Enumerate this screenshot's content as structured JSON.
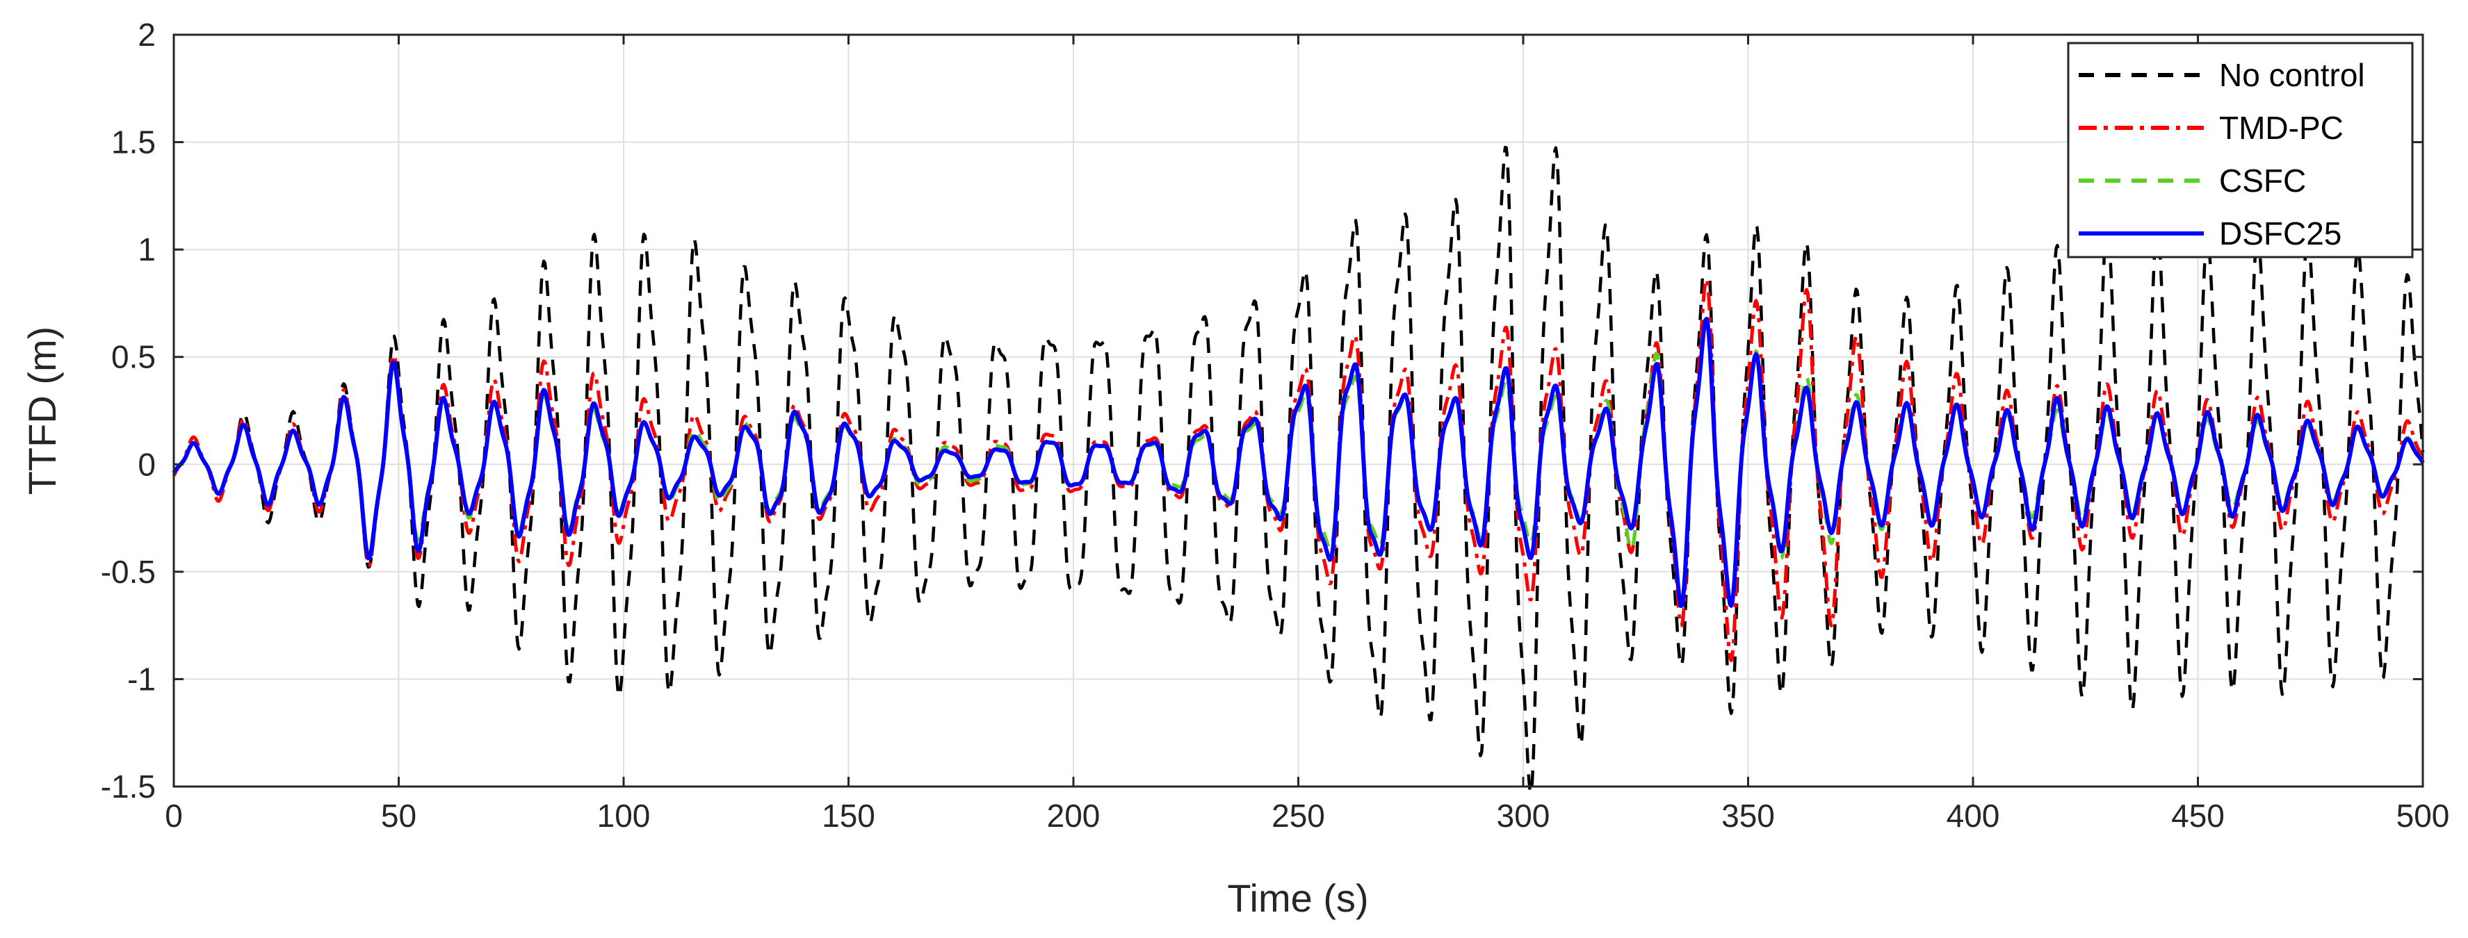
{
  "chart_data": {
    "type": "line",
    "title": "",
    "xlabel": "Time (s)",
    "ylabel": "TTFD (m)",
    "xlim": [
      0,
      500
    ],
    "ylim": [
      -1.5,
      2
    ],
    "xticks": [
      0,
      50,
      100,
      150,
      200,
      250,
      300,
      350,
      400,
      450,
      500
    ],
    "yticks": [
      -1.5,
      -1,
      -0.5,
      0,
      0.5,
      1,
      1.5,
      2
    ],
    "xtick_labels": [
      "0",
      "50",
      "100",
      "150",
      "200",
      "250",
      "300",
      "350",
      "400",
      "450",
      "500"
    ],
    "ytick_labels": [
      "-1.5",
      "-1",
      "-0.5",
      "0",
      "0.5",
      "1",
      "1.5",
      "2"
    ],
    "grid": true,
    "legend_position": "top-right",
    "wave_period_s": 11.2,
    "series": [
      {
        "name": "No control",
        "color": "#000000",
        "style": "dashed",
        "envelope": [
          [
            0,
            0.06
          ],
          [
            10,
            0.12
          ],
          [
            18,
            0.25
          ],
          [
            30,
            0.2
          ],
          [
            45,
            0.45
          ],
          [
            50,
            0.55
          ],
          [
            56,
            0.6
          ],
          [
            65,
            0.6
          ],
          [
            75,
            0.75
          ],
          [
            85,
            0.9
          ],
          [
            95,
            1.0
          ],
          [
            105,
            1.0
          ],
          [
            115,
            1.0
          ],
          [
            125,
            0.9
          ],
          [
            135,
            0.85
          ],
          [
            145,
            0.8
          ],
          [
            155,
            0.75
          ],
          [
            165,
            0.68
          ],
          [
            175,
            0.6
          ],
          [
            185,
            0.62
          ],
          [
            195,
            0.66
          ],
          [
            205,
            0.65
          ],
          [
            215,
            0.7
          ],
          [
            225,
            0.72
          ],
          [
            235,
            0.8
          ],
          [
            245,
            0.82
          ],
          [
            255,
            1.0
          ],
          [
            265,
            1.2
          ],
          [
            275,
            1.15
          ],
          [
            285,
            1.2
          ],
          [
            298,
            1.45
          ],
          [
            305,
            1.45
          ],
          [
            315,
            1.15
          ],
          [
            325,
            0.8
          ],
          [
            335,
            0.85
          ],
          [
            345,
            1.05
          ],
          [
            355,
            0.97
          ],
          [
            365,
            0.9
          ],
          [
            375,
            0.7
          ],
          [
            385,
            0.68
          ],
          [
            395,
            0.72
          ],
          [
            405,
            0.78
          ],
          [
            415,
            0.85
          ],
          [
            425,
            0.95
          ],
          [
            435,
            1.0
          ],
          [
            445,
            0.95
          ],
          [
            455,
            0.92
          ],
          [
            465,
            0.95
          ],
          [
            475,
            0.95
          ],
          [
            485,
            0.9
          ],
          [
            495,
            0.9
          ],
          [
            500,
            0.6
          ]
        ]
      },
      {
        "name": "TMD-PC",
        "color": "#ff0000",
        "style": "dashdot",
        "envelope": [
          [
            0,
            0.08
          ],
          [
            10,
            0.15
          ],
          [
            18,
            0.2
          ],
          [
            30,
            0.15
          ],
          [
            45,
            0.45
          ],
          [
            50,
            0.45
          ],
          [
            55,
            0.38
          ],
          [
            65,
            0.28
          ],
          [
            75,
            0.4
          ],
          [
            85,
            0.45
          ],
          [
            95,
            0.38
          ],
          [
            105,
            0.28
          ],
          [
            115,
            0.22
          ],
          [
            125,
            0.2
          ],
          [
            135,
            0.28
          ],
          [
            145,
            0.25
          ],
          [
            155,
            0.22
          ],
          [
            165,
            0.12
          ],
          [
            175,
            0.1
          ],
          [
            185,
            0.12
          ],
          [
            195,
            0.16
          ],
          [
            205,
            0.12
          ],
          [
            215,
            0.12
          ],
          [
            225,
            0.18
          ],
          [
            235,
            0.22
          ],
          [
            245,
            0.3
          ],
          [
            255,
            0.55
          ],
          [
            262,
            0.62
          ],
          [
            270,
            0.45
          ],
          [
            280,
            0.42
          ],
          [
            290,
            0.48
          ],
          [
            298,
            0.65
          ],
          [
            305,
            0.55
          ],
          [
            315,
            0.35
          ],
          [
            325,
            0.38
          ],
          [
            335,
            0.68
          ],
          [
            345,
            0.85
          ],
          [
            355,
            0.6
          ],
          [
            365,
            0.75
          ],
          [
            375,
            0.5
          ],
          [
            385,
            0.42
          ],
          [
            395,
            0.38
          ],
          [
            405,
            0.3
          ],
          [
            415,
            0.3
          ],
          [
            425,
            0.35
          ],
          [
            435,
            0.3
          ],
          [
            445,
            0.3
          ],
          [
            455,
            0.25
          ],
          [
            465,
            0.28
          ],
          [
            475,
            0.26
          ],
          [
            485,
            0.22
          ],
          [
            495,
            0.2
          ],
          [
            500,
            0.15
          ]
        ]
      },
      {
        "name": "CSFC",
        "color": "#5ad01e",
        "style": "dashed",
        "envelope": [
          [
            0,
            0.06
          ],
          [
            10,
            0.12
          ],
          [
            18,
            0.18
          ],
          [
            30,
            0.12
          ],
          [
            45,
            0.4
          ],
          [
            50,
            0.4
          ],
          [
            55,
            0.3
          ],
          [
            65,
            0.22
          ],
          [
            75,
            0.28
          ],
          [
            85,
            0.3
          ],
          [
            95,
            0.22
          ],
          [
            105,
            0.18
          ],
          [
            115,
            0.15
          ],
          [
            125,
            0.18
          ],
          [
            135,
            0.22
          ],
          [
            145,
            0.2
          ],
          [
            155,
            0.15
          ],
          [
            165,
            0.1
          ],
          [
            175,
            0.08
          ],
          [
            185,
            0.1
          ],
          [
            195,
            0.12
          ],
          [
            205,
            0.1
          ],
          [
            215,
            0.1
          ],
          [
            225,
            0.12
          ],
          [
            235,
            0.18
          ],
          [
            245,
            0.22
          ],
          [
            255,
            0.4
          ],
          [
            265,
            0.42
          ],
          [
            275,
            0.3
          ],
          [
            285,
            0.3
          ],
          [
            298,
            0.38
          ],
          [
            305,
            0.32
          ],
          [
            315,
            0.22
          ],
          [
            325,
            0.38
          ],
          [
            335,
            0.58
          ],
          [
            345,
            0.62
          ],
          [
            355,
            0.4
          ],
          [
            365,
            0.35
          ],
          [
            375,
            0.28
          ],
          [
            385,
            0.25
          ],
          [
            395,
            0.25
          ],
          [
            405,
            0.2
          ],
          [
            415,
            0.22
          ],
          [
            425,
            0.22
          ],
          [
            435,
            0.2
          ],
          [
            445,
            0.2
          ],
          [
            455,
            0.18
          ],
          [
            465,
            0.18
          ],
          [
            475,
            0.16
          ],
          [
            485,
            0.15
          ],
          [
            495,
            0.12
          ],
          [
            500,
            0.1
          ]
        ]
      },
      {
        "name": "DSFC25",
        "color": "#0000ff",
        "style": "solid",
        "envelope": [
          [
            0,
            0.06
          ],
          [
            10,
            0.12
          ],
          [
            18,
            0.18
          ],
          [
            30,
            0.12
          ],
          [
            45,
            0.42
          ],
          [
            50,
            0.42
          ],
          [
            55,
            0.35
          ],
          [
            65,
            0.2
          ],
          [
            75,
            0.3
          ],
          [
            85,
            0.32
          ],
          [
            95,
            0.25
          ],
          [
            105,
            0.18
          ],
          [
            115,
            0.12
          ],
          [
            125,
            0.15
          ],
          [
            135,
            0.25
          ],
          [
            145,
            0.22
          ],
          [
            155,
            0.15
          ],
          [
            165,
            0.08
          ],
          [
            175,
            0.06
          ],
          [
            185,
            0.08
          ],
          [
            195,
            0.12
          ],
          [
            205,
            0.1
          ],
          [
            215,
            0.1
          ],
          [
            225,
            0.15
          ],
          [
            235,
            0.2
          ],
          [
            245,
            0.25
          ],
          [
            255,
            0.45
          ],
          [
            265,
            0.48
          ],
          [
            275,
            0.3
          ],
          [
            285,
            0.3
          ],
          [
            298,
            0.45
          ],
          [
            305,
            0.38
          ],
          [
            315,
            0.22
          ],
          [
            325,
            0.28
          ],
          [
            335,
            0.6
          ],
          [
            345,
            0.62
          ],
          [
            355,
            0.38
          ],
          [
            365,
            0.3
          ],
          [
            375,
            0.25
          ],
          [
            385,
            0.25
          ],
          [
            395,
            0.25
          ],
          [
            405,
            0.2
          ],
          [
            415,
            0.28
          ],
          [
            425,
            0.25
          ],
          [
            435,
            0.22
          ],
          [
            445,
            0.2
          ],
          [
            455,
            0.22
          ],
          [
            465,
            0.2
          ],
          [
            475,
            0.18
          ],
          [
            485,
            0.16
          ],
          [
            495,
            0.12
          ],
          [
            500,
            0.08
          ]
        ]
      }
    ]
  }
}
